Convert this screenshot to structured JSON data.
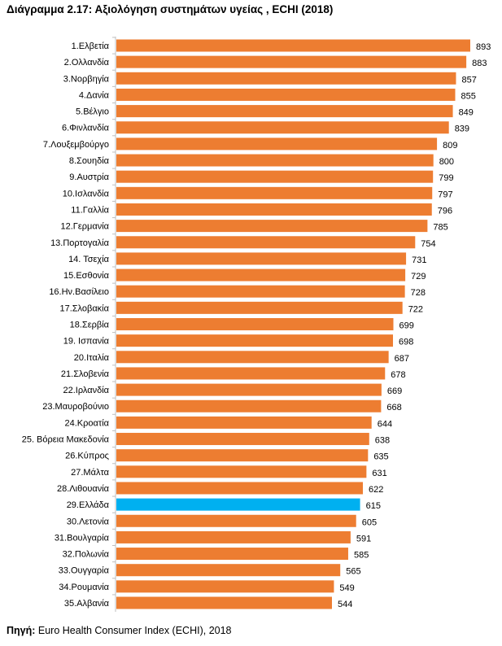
{
  "chart_data": {
    "type": "bar",
    "orientation": "horizontal",
    "title": "Διάγραμμα 2.17: Αξιολόγηση συστημάτων υγείας , ECHI (2018)",
    "categories": [
      "1.Ελβετία",
      "2.Ολλανδία",
      "3.Νορβηγία",
      "4.Δανία",
      "5.Βέλγιο",
      "6.Φινλανδία",
      "7.Λουξεμβούργο",
      "8.Σουηδία",
      "9.Αυστρία",
      "10.Ισλανδία",
      "11.Γαλλία",
      "12.Γερμανία",
      "13.Πορτογαλία",
      "14. Τσεχία",
      "15.Εσθονία",
      "16.Ην.Βασίλειο",
      "17.Σλοβακία",
      "18.Σερβία",
      "19. Ισπανία",
      "20.Ιταλία",
      "21.Σλοβενία",
      "22.Ιρλανδία",
      "23.Μαυροβούνιο",
      "24.Κροατία",
      "25. Βόρεια Μακεδονία",
      "26.Κύπρος",
      "27.Μάλτα",
      "28.Λιθουανία",
      "29.Ελλάδα",
      "30.Λετονία",
      "31.Βουλγαρία",
      "32.Πολωνία",
      "33.Ουγγαρία",
      "34.Ρουμανία",
      "35.Αλβανία"
    ],
    "values": [
      893,
      883,
      857,
      855,
      849,
      839,
      809,
      800,
      799,
      797,
      796,
      785,
      754,
      731,
      729,
      728,
      722,
      699,
      698,
      687,
      678,
      669,
      668,
      644,
      638,
      635,
      631,
      622,
      615,
      605,
      591,
      585,
      565,
      549,
      544
    ],
    "xlim": [
      0,
      893
    ],
    "grid": false,
    "legend": "none",
    "colors": {
      "default": "#ED7D31",
      "highlight": "#00B0F0"
    },
    "highlight_category": "29.Ελλάδα"
  },
  "source": {
    "label": "Πηγή:",
    "text": " Euro Health Consumer Index (ECHI), 2018"
  }
}
